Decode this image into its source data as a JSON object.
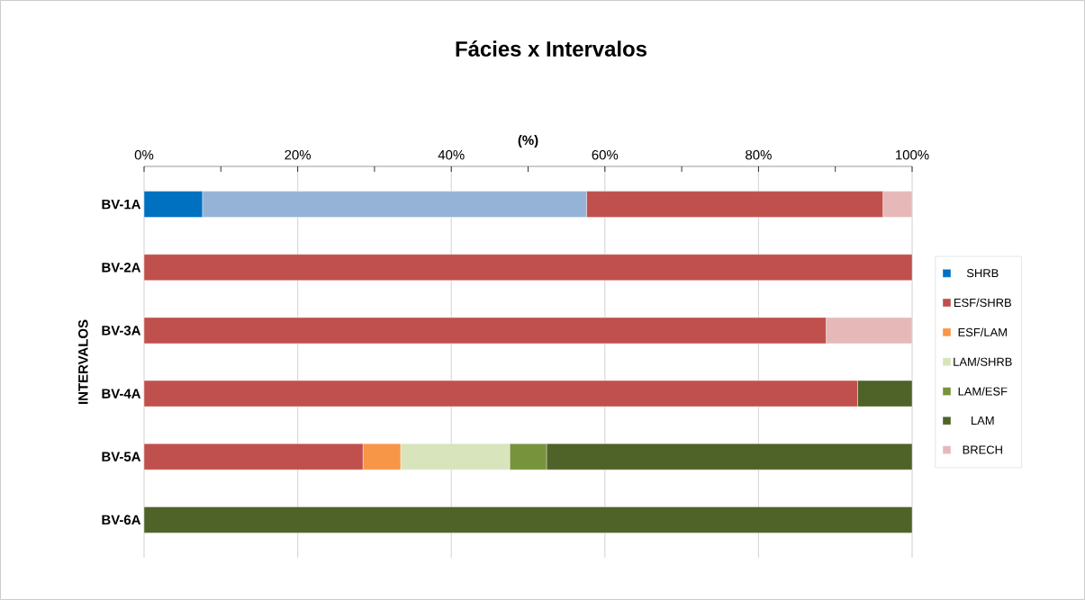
{
  "chart_data": {
    "type": "bar",
    "orientation": "horizontal",
    "stacked": true,
    "title": "Fácies x Intervalos",
    "xlabel": "(%)",
    "ylabel": "INTERVALOS",
    "categories": [
      "BV-1A",
      "BV-2A",
      "BV-3A",
      "BV-4A",
      "BV-5A",
      "BV-6A"
    ],
    "series": [
      {
        "name": "SHRB",
        "color": "#0070c0",
        "values": [
          7.6,
          0,
          0,
          0,
          0,
          0
        ]
      },
      {
        "color": "#95b3d7",
        "values": [
          50.0,
          0,
          0,
          0,
          0,
          0
        ]
      },
      {
        "name": "ESF/SHRB",
        "color": "#c0504d",
        "values": [
          38.6,
          100,
          88.8,
          92.9,
          28.5,
          0
        ]
      },
      {
        "name": "ESF/LAM",
        "color": "#f79646",
        "values": [
          0,
          0,
          0,
          0,
          4.9,
          0
        ]
      },
      {
        "name": "LAM/SHRB",
        "color": "#d8e4bc",
        "values": [
          0,
          0,
          0,
          0,
          14.2,
          0
        ]
      },
      {
        "name": "LAM/ESF",
        "color": "#77933c",
        "values": [
          0,
          0,
          0,
          0,
          4.8,
          0
        ]
      },
      {
        "name": "LAM",
        "color": "#4f6228",
        "values": [
          0,
          0,
          0,
          7.1,
          47.6,
          100
        ]
      },
      {
        "name": "BRECH",
        "color": "#e6b9b8",
        "values": [
          3.8,
          0,
          11.2,
          0,
          0,
          0
        ]
      }
    ],
    "xlim": [
      0,
      100
    ],
    "xticks": [
      {
        "value": 0,
        "label": "0%"
      },
      {
        "value": 10,
        "label": null
      },
      {
        "value": 20,
        "label": "20%"
      },
      {
        "value": 30,
        "label": null
      },
      {
        "value": 40,
        "label": "40%"
      },
      {
        "value": 50,
        "label": null
      },
      {
        "value": 60,
        "label": "60%"
      },
      {
        "value": 70,
        "label": null
      },
      {
        "value": 80,
        "label": "80%"
      },
      {
        "value": 90,
        "label": null
      },
      {
        "value": 100,
        "label": "100%"
      }
    ],
    "grid": "x",
    "legend": "right"
  }
}
